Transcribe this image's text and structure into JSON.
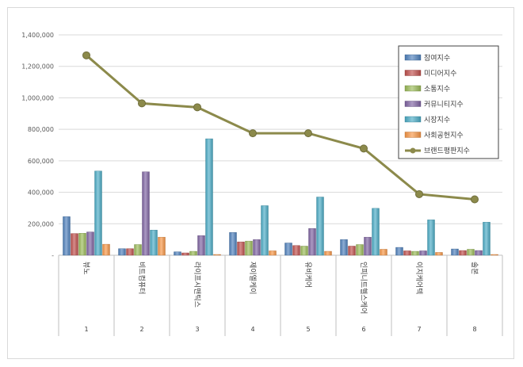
{
  "chart_data": {
    "type": "bar",
    "title": "",
    "xlabel": "",
    "ylabel": "",
    "ylim": [
      0,
      1400000
    ],
    "yticks": [
      0,
      200000,
      400000,
      600000,
      800000,
      1000000,
      1200000,
      1400000
    ],
    "ytick_labels": [
      "-",
      "200,000",
      "400,000",
      "600,000",
      "800,000",
      "1,000,000",
      "1,200,000",
      "1,400,000"
    ],
    "grid": true,
    "legend_position": "top-right",
    "categories": [
      "뷰노",
      "비트컴퓨터",
      "라이프시맨틱스",
      "제이엘케이",
      "유비케어",
      "인피니트헬스케어",
      "이지케어텍",
      "솔본"
    ],
    "category_numbers": [
      "1",
      "2",
      "3",
      "4",
      "5",
      "6",
      "7",
      "8"
    ],
    "series": [
      {
        "name": "참여지수",
        "color": "#4f81bd",
        "values": [
          245000,
          42000,
          22000,
          145000,
          78000,
          100000,
          50000,
          40000
        ]
      },
      {
        "name": "미디어지수",
        "color": "#c0504d",
        "values": [
          138000,
          42000,
          15000,
          85000,
          62000,
          58000,
          28000,
          30000
        ]
      },
      {
        "name": "소통지수",
        "color": "#9bbb59",
        "values": [
          140000,
          68000,
          25000,
          90000,
          58000,
          68000,
          25000,
          38000
        ]
      },
      {
        "name": "커뮤니티지수",
        "color": "#8064a2",
        "values": [
          148000,
          530000,
          125000,
          100000,
          170000,
          115000,
          28000,
          30000
        ]
      },
      {
        "name": "시장지수",
        "color": "#4bacc6",
        "values": [
          535000,
          160000,
          740000,
          315000,
          370000,
          298000,
          225000,
          210000
        ]
      },
      {
        "name": "사회공헌지수",
        "color": "#f79646",
        "values": [
          70000,
          115000,
          5000,
          28000,
          25000,
          38000,
          18000,
          5000
        ]
      }
    ],
    "line_series": {
      "name": "브랜드평판지수",
      "color": "#8c8a4b",
      "values": [
        1270000,
        965000,
        940000,
        775000,
        775000,
        678000,
        388000,
        355000
      ]
    }
  }
}
